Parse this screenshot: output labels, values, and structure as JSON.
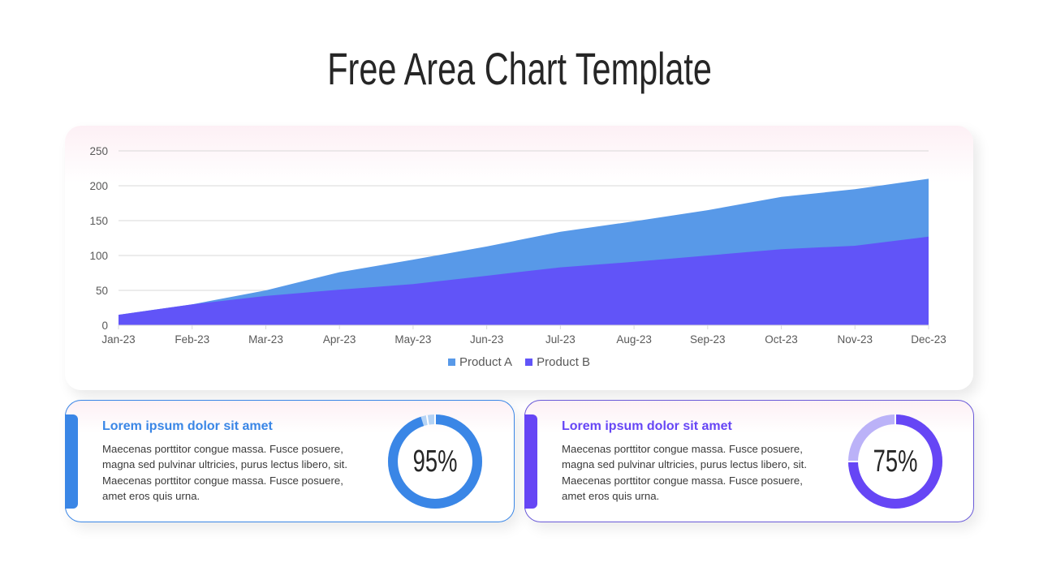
{
  "page": {
    "title": "Free Area Chart Template"
  },
  "chart_data": {
    "type": "area",
    "title": "",
    "xlabel": "",
    "ylabel": "",
    "categories": [
      "Jan-23",
      "Feb-23",
      "Mar-23",
      "Apr-23",
      "May-23",
      "Jun-23",
      "Jul-23",
      "Aug-23",
      "Sep-23",
      "Oct-23",
      "Nov-23",
      "Dec-23"
    ],
    "series": [
      {
        "name": "Product A",
        "color": "#5899e8",
        "values": [
          15,
          30,
          50,
          76,
          94,
          113,
          134,
          149,
          165,
          184,
          195,
          210
        ]
      },
      {
        "name": "Product B",
        "color": "#6154f8",
        "values": [
          15,
          30,
          42,
          51,
          59,
          71,
          83,
          91,
          100,
          109,
          114,
          127
        ]
      }
    ],
    "ylim": [
      0,
      250
    ],
    "yticks": [
      0,
      50,
      100,
      150,
      200,
      250
    ],
    "grid": true,
    "legend_position": "bottom"
  },
  "legend": {
    "items": [
      {
        "label": "Product A",
        "color": "#5899e8"
      },
      {
        "label": "Product B",
        "color": "#6154f8"
      }
    ]
  },
  "cards": [
    {
      "heading": "Lorem ipsum dolor sit amet",
      "body": "Maecenas porttitor congue massa. Fusce posuere, magna sed pulvinar ultricies, purus lectus libero, sit. Maecenas porttitor congue massa. Fusce posuere, amet eros quis urna.",
      "percent_label": "95%",
      "percent": 95,
      "accent_color": "#3a86e6",
      "track_color": "#b5d3f5"
    },
    {
      "heading": "Lorem ipsum dolor sit amet",
      "body": "Maecenas porttitor congue massa. Fusce posuere, magna sed pulvinar ultricies, purus lectus libero, sit. Maecenas porttitor congue massa. Fusce posuere, amet eros quis urna.",
      "percent_label": "75%",
      "percent": 75,
      "accent_color": "#6646f5",
      "track_color": "#bbb2f8"
    }
  ]
}
